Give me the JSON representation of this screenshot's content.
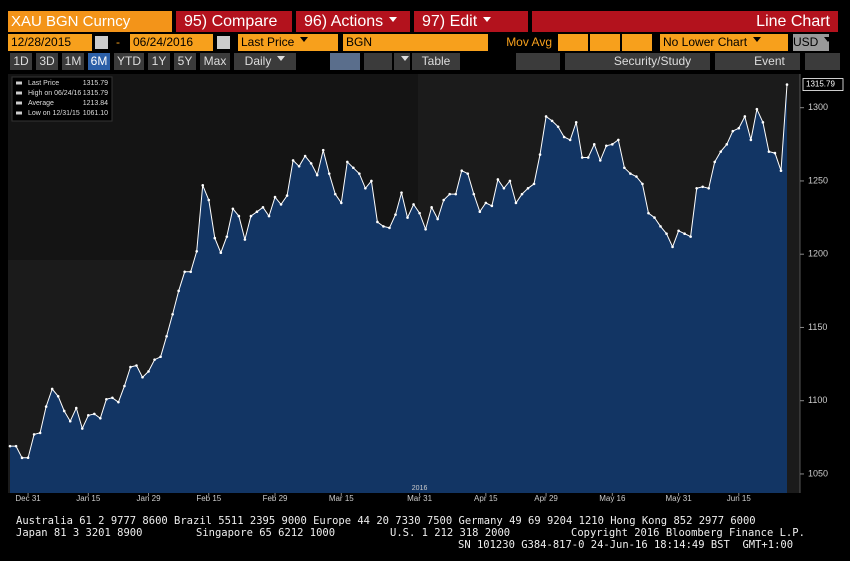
{
  "header": {
    "security": "XAU BGN Curncy",
    "compare": "95) Compare",
    "actions": "96) Actions",
    "edit": "97) Edit",
    "chart_type": "Line Chart"
  },
  "fields": {
    "start_date": "12/28/2015",
    "separator": "-",
    "end_date": "06/24/2016",
    "field": "Last Price",
    "source": "BGN",
    "study": "Mov Avg",
    "lower_chart": "No Lower Chart",
    "currency": "USD"
  },
  "periods": [
    "1D",
    "3D",
    "1M",
    "6M",
    "YTD",
    "1Y",
    "5Y",
    "Max"
  ],
  "frequency": "Daily",
  "toolbar": {
    "table": "Table",
    "security_study": "Security/Study",
    "event": "Event"
  },
  "footer": {
    "line1": "Australia 61 2 9777 8600 Brazil 5511 2395 9000 Europe 44 20 7330 7500 Germany 49 69 9204 1210 Hong Kong 852 2977 6000",
    "japan": "Japan 81 3 3201 8900",
    "singapore": "Singapore 65 6212 1000",
    "us": "U.S. 1 212 318 2000",
    "copyright": "Copyright 2016 Bloomberg Finance L.P.",
    "serial": "SN 101230 G384-817-0 24-Jun-16 18:14:49 BST  GMT+1:00"
  },
  "chart_data": {
    "type": "line",
    "categories": [
      null,
      null,
      null,
      "Dec 31",
      null,
      null,
      null,
      null,
      null,
      null,
      null,
      null,
      null,
      "Jan 15",
      null,
      null,
      null,
      null,
      null,
      null,
      null,
      null,
      null,
      "Jan 29",
      null,
      null,
      null,
      null,
      null,
      null,
      null,
      null,
      null,
      "Feb 15",
      null,
      null,
      null,
      null,
      null,
      null,
      null,
      null,
      null,
      null,
      "Feb 29",
      null,
      null,
      null,
      null,
      null,
      null,
      null,
      null,
      null,
      null,
      "Mar 15",
      null,
      null,
      null,
      null,
      null,
      null,
      null,
      null,
      null,
      null,
      null,
      null,
      "Mar 31",
      null,
      null,
      null,
      null,
      null,
      null,
      null,
      null,
      null,
      null,
      "Apr 15",
      null,
      null,
      null,
      null,
      null,
      null,
      null,
      null,
      null,
      "Apr 29",
      null,
      null,
      null,
      null,
      null,
      null,
      null,
      null,
      null,
      null,
      "May 16",
      null,
      null,
      null,
      null,
      null,
      null,
      null,
      null,
      null,
      null,
      "May 31",
      null,
      null,
      null,
      null,
      null,
      null,
      null,
      null,
      null,
      "Jun 15",
      null,
      null,
      null,
      null,
      null,
      null,
      null,
      null
    ],
    "year_label": "2016",
    "series": [
      {
        "name": "Last Price",
        "color": "#ffffff",
        "values": [
          1069,
          1069,
          1061,
          1061.1,
          1077,
          1078,
          1096,
          1108,
          1103,
          1093,
          1086,
          1095,
          1081,
          1090,
          1091,
          1088,
          1101,
          1102,
          1099,
          1110,
          1123,
          1124,
          1116,
          1120,
          1128,
          1130,
          1144,
          1159,
          1175,
          1188,
          1188,
          1202,
          1247,
          1237,
          1211,
          1201,
          1212,
          1231,
          1226,
          1210,
          1226,
          1229,
          1232,
          1226,
          1239,
          1234,
          1240,
          1264,
          1260,
          1267,
          1262,
          1254,
          1271,
          1255,
          1241,
          1235,
          1263,
          1259,
          1255,
          1245,
          1250,
          1222,
          1219,
          1218,
          1227,
          1242,
          1225,
          1234,
          1228,
          1217,
          1232,
          1224,
          1237,
          1241,
          1241,
          1257,
          1255,
          1241,
          1229,
          1235,
          1233,
          1251,
          1245,
          1250,
          1235,
          1241,
          1245,
          1248,
          1268,
          1294,
          1291,
          1287,
          1280,
          1278,
          1290,
          1266,
          1266,
          1275,
          1264,
          1274,
          1275,
          1278,
          1259,
          1255,
          1253,
          1248,
          1228,
          1225,
          1219,
          1214,
          1205,
          1216,
          1214,
          1212,
          1245,
          1246,
          1245,
          1263,
          1270,
          1275,
          1284,
          1286,
          1294,
          1278,
          1299,
          1290,
          1270,
          1269,
          1257,
          1315.79
        ]
      }
    ],
    "legend_stats": [
      {
        "label": "High on 06/24/16",
        "value": "1315.79"
      },
      {
        "label": "Average",
        "value": "1213.84"
      },
      {
        "label": "Low on 12/31/15",
        "value": "1061.10"
      }
    ],
    "area_color": "#123564",
    "ylim": [
      1037,
      1323
    ],
    "yticks": [
      1050,
      1100,
      1150,
      1200,
      1250,
      1300
    ]
  }
}
